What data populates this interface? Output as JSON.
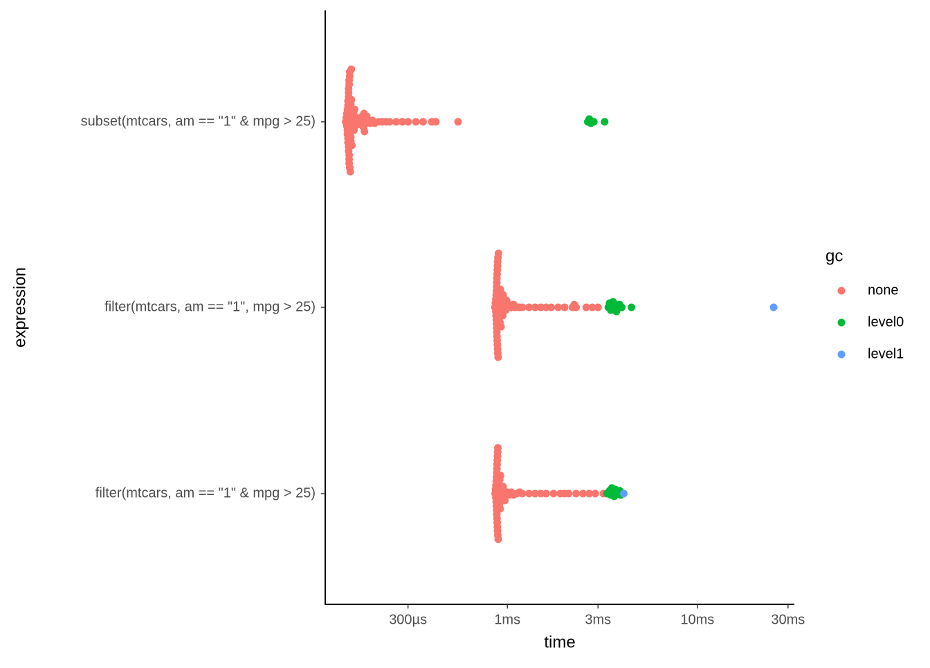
{
  "chart_data": {
    "type": "beeswarm",
    "x_label": "time",
    "y_label": "expression",
    "legend_title": "gc",
    "log_x": true,
    "categories": [
      "subset(mtcars, am == \"1\" & mpg > 25)",
      "filter(mtcars, am == \"1\", mpg > 25)",
      "filter(mtcars, am == \"1\" & mpg > 25)"
    ],
    "xlim": [
      0.11,
      32.4
    ],
    "xticks": [
      {
        "value": 0.3,
        "label": "300µs"
      },
      {
        "value": 1,
        "label": "1ms"
      },
      {
        "value": 3,
        "label": "3ms"
      },
      {
        "value": 10,
        "label": "10ms"
      },
      {
        "value": 30,
        "label": "30ms"
      }
    ],
    "series": [
      {
        "name": "none",
        "color": "#F8766D",
        "values": [
          [
            0.141,
            0.142,
            0.143,
            0.143,
            0.144,
            0.144,
            0.144,
            0.145,
            0.145,
            0.145,
            0.145,
            0.146,
            0.146,
            0.146,
            0.146,
            0.146,
            0.146,
            0.147,
            0.147,
            0.147,
            0.147,
            0.147,
            0.147,
            0.148,
            0.148,
            0.148,
            0.148,
            0.148,
            0.149,
            0.149,
            0.149,
            0.149,
            0.15,
            0.15,
            0.15,
            0.151,
            0.151,
            0.152,
            0.152,
            0.153,
            0.154,
            0.155,
            0.156,
            0.157,
            0.158,
            0.16,
            0.162,
            0.165,
            0.168,
            0.17,
            0.172,
            0.174,
            0.175,
            0.176,
            0.177,
            0.178,
            0.18,
            0.182,
            0.185,
            0.19,
            0.195,
            0.2,
            0.21,
            0.22,
            0.23,
            0.24,
            0.26,
            0.28,
            0.3,
            0.33,
            0.36,
            0.4,
            0.42,
            0.55
          ],
          [
            0.86,
            0.865,
            0.87,
            0.87,
            0.872,
            0.874,
            0.875,
            0.876,
            0.877,
            0.878,
            0.879,
            0.88,
            0.88,
            0.881,
            0.882,
            0.883,
            0.884,
            0.885,
            0.886,
            0.887,
            0.888,
            0.889,
            0.89,
            0.89,
            0.892,
            0.894,
            0.896,
            0.898,
            0.9,
            0.9,
            0.903,
            0.906,
            0.91,
            0.914,
            0.918,
            0.922,
            0.926,
            0.93,
            0.935,
            0.94,
            0.945,
            0.95,
            0.96,
            0.97,
            0.98,
            0.99,
            1.0,
            1.02,
            1.05,
            1.08,
            1.1,
            1.15,
            1.2,
            1.3,
            1.4,
            1.5,
            1.6,
            1.7,
            1.85,
            2.0,
            2.2,
            2.25,
            2.3,
            2.6,
            2.8,
            3.0
          ],
          [
            0.862,
            0.866,
            0.87,
            0.871,
            0.873,
            0.874,
            0.875,
            0.877,
            0.878,
            0.879,
            0.88,
            0.881,
            0.882,
            0.883,
            0.884,
            0.885,
            0.886,
            0.887,
            0.888,
            0.889,
            0.89,
            0.891,
            0.893,
            0.895,
            0.897,
            0.9,
            0.902,
            0.905,
            0.908,
            0.912,
            0.916,
            0.92,
            0.925,
            0.93,
            0.94,
            0.95,
            0.96,
            0.97,
            0.98,
            1.0,
            1.02,
            1.05,
            1.08,
            1.12,
            1.16,
            1.2,
            1.3,
            1.4,
            1.5,
            1.6,
            1.75,
            1.9,
            2.0,
            2.1,
            2.3,
            2.5,
            2.7,
            2.9,
            3.2
          ]
        ]
      },
      {
        "name": "level0",
        "color": "#00BA38",
        "values": [
          [
            2.65,
            2.7,
            2.75,
            2.85,
            3.25
          ],
          [
            3.4,
            3.45,
            3.5,
            3.55,
            3.6,
            3.65,
            3.7,
            3.75,
            3.8,
            3.9,
            4.0,
            4.5
          ],
          [
            3.35,
            3.45,
            3.5,
            3.55,
            3.6,
            3.65,
            3.7,
            3.8,
            3.9,
            3.95
          ]
        ]
      },
      {
        "name": "level1",
        "color": "#619CFF",
        "values": [
          [],
          [
            25.2
          ],
          [
            4.1
          ]
        ]
      }
    ]
  }
}
